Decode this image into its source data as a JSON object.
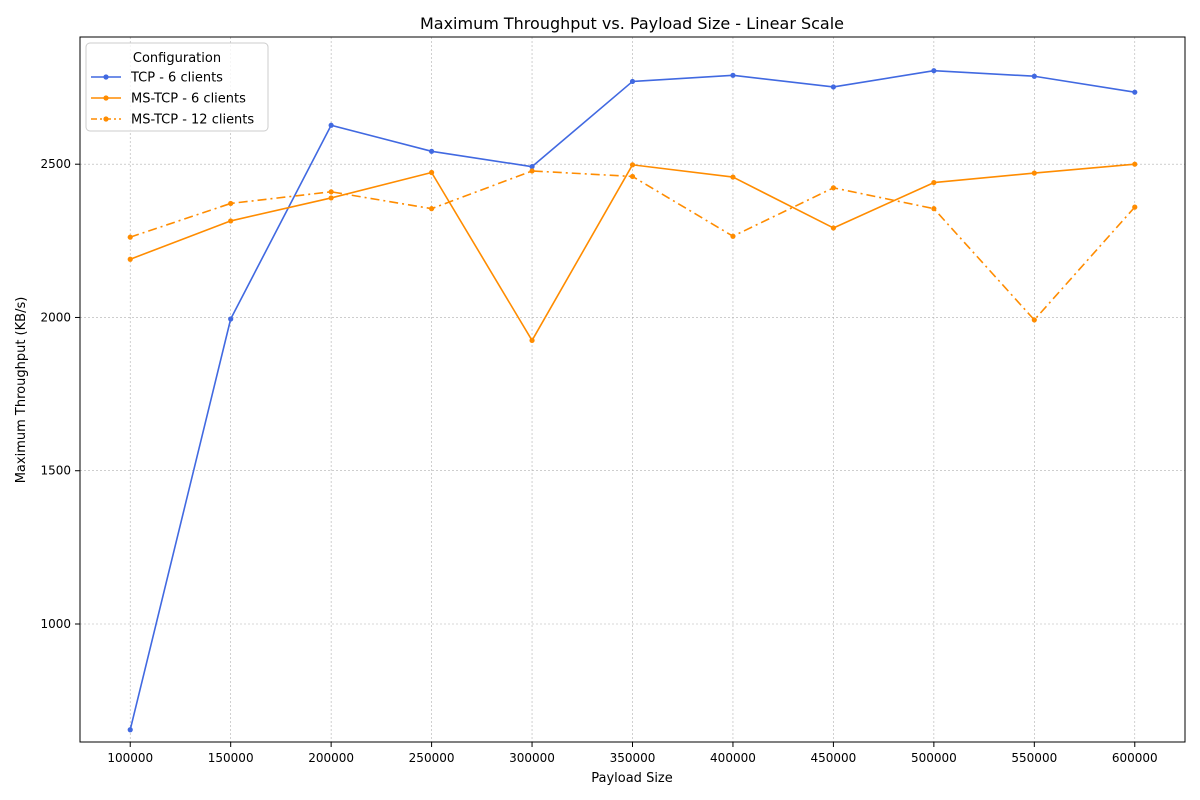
{
  "chart_data": {
    "type": "line",
    "title": "Maximum Throughput vs. Payload Size - Linear Scale",
    "xlabel": "Payload Size",
    "ylabel": "Maximum Throughput (KB/s)",
    "x": [
      100000,
      150000,
      200000,
      250000,
      300000,
      350000,
      400000,
      450000,
      500000,
      550000,
      600000
    ],
    "xticks": [
      "100000",
      "150000",
      "200000",
      "250000",
      "300000",
      "350000",
      "400000",
      "450000",
      "500000",
      "550000",
      "600000"
    ],
    "yticks": [
      "1000",
      "1500",
      "2000",
      "2500"
    ],
    "xlim": [
      75000,
      625000
    ],
    "ylim": [
      615,
      2915
    ],
    "grid": true,
    "legend": {
      "title": "Configuration",
      "position": "top-left"
    },
    "series": [
      {
        "name": "TCP - 6 clients",
        "color": "#4169e1",
        "linestyle": "solid",
        "values": [
          655,
          1995,
          2627,
          2542,
          2492,
          2770,
          2790,
          2752,
          2805,
          2787,
          2735
        ]
      },
      {
        "name": "MS-TCP - 6 clients",
        "color": "#ff8c00",
        "linestyle": "solid",
        "values": [
          2190,
          2315,
          2390,
          2473,
          1925,
          2498,
          2458,
          2292,
          2440,
          2471,
          2500
        ]
      },
      {
        "name": "MS-TCP - 12 clients",
        "color": "#ff8c00",
        "linestyle": "dashdot",
        "values": [
          2262,
          2372,
          2410,
          2355,
          2478,
          2460,
          2265,
          2423,
          2355,
          1992,
          2360
        ]
      }
    ]
  }
}
